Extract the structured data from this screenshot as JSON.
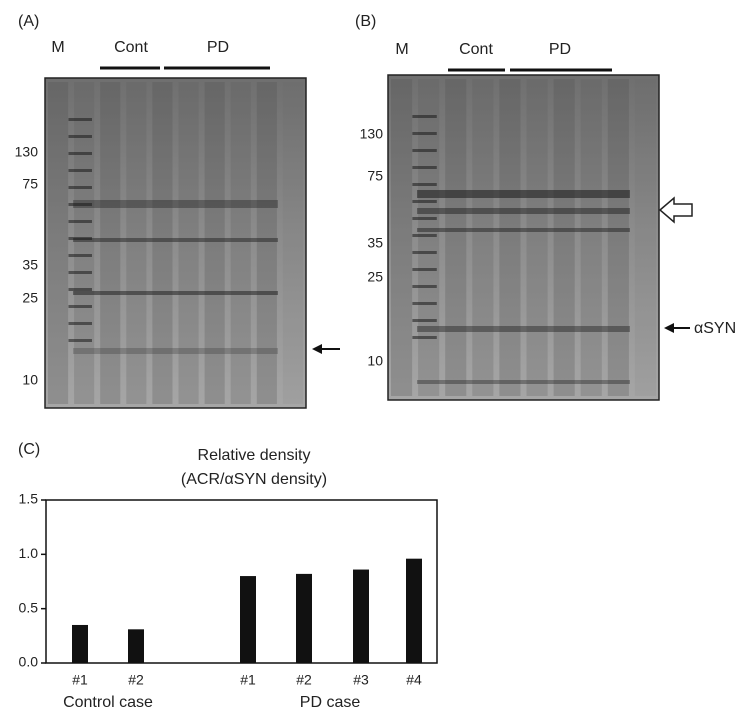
{
  "panel_a": {
    "label": "(A)",
    "lane_labels": {
      "marker": "M",
      "control": "Cont",
      "pd": "PD"
    },
    "size_markers": [
      "130",
      "75",
      "35",
      "25",
      "10"
    ]
  },
  "panel_b": {
    "label": "(B)",
    "lane_labels": {
      "marker": "M",
      "control": "Cont",
      "pd": "PD"
    },
    "size_markers": [
      "130",
      "75",
      "35",
      "25",
      "10"
    ],
    "arrow_label": "αSYN"
  },
  "chart_data": {
    "type": "bar",
    "panel_label": "(C)",
    "title": "Relative density",
    "subtitle": "(ACR/αSYN density)",
    "categories": [
      "#1",
      "#2",
      "#1",
      "#2",
      "#3",
      "#4"
    ],
    "values": [
      0.35,
      0.31,
      0.8,
      0.82,
      0.86,
      0.96
    ],
    "color": "#111111",
    "group_labels": [
      "Control case",
      "PD case"
    ],
    "ylim": [
      0,
      1.5
    ],
    "yticks": [
      {
        "value": 0,
        "label": "0.0"
      },
      0.5,
      {
        "value": 1,
        "label": "1.0"
      },
      1.5
    ]
  }
}
